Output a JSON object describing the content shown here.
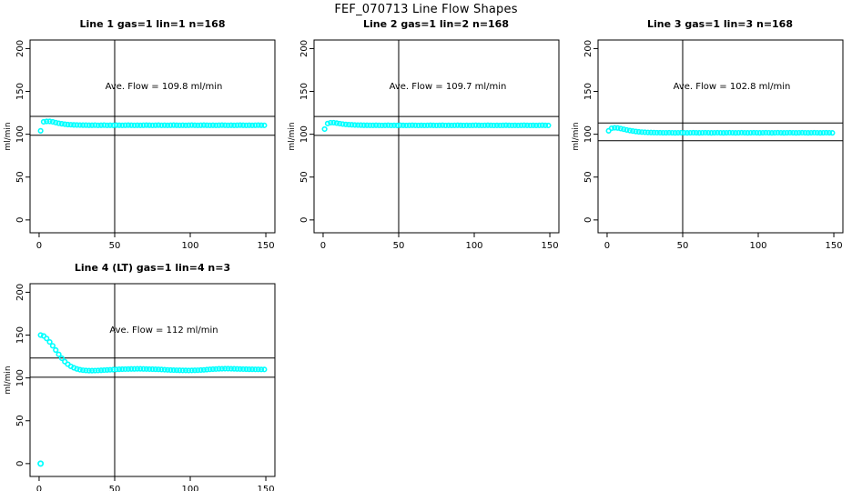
{
  "page_title": "FEF_070713  Line Flow Shapes",
  "colors": {
    "data_marker": "#00ffff",
    "axis": "#000000",
    "background": "#ffffff"
  },
  "chart_data": [
    {
      "type": "scatter",
      "title": "Line 1 gas=1 lin=1 n=168",
      "annotation": "Ave. Flow =  109.8  ml/min",
      "ave_flow": 109.8,
      "n": 168,
      "ylabel": "ml/min",
      "x_ticks": [
        0,
        50,
        100,
        150
      ],
      "y_ticks": [
        0,
        50,
        100,
        150,
        200
      ],
      "xlim": [
        -6,
        156
      ],
      "ylim": [
        -15,
        210
      ],
      "vline_x": 50,
      "hlines": [
        98.8,
        120.8
      ],
      "marker": "open-circle",
      "x_start": 1,
      "x_step": 2,
      "y": [
        104,
        114.5,
        115,
        115,
        114.5,
        113.6,
        112.8,
        112.2,
        111.7,
        111.3,
        111.1,
        110.9,
        110.8,
        110.7,
        110.6,
        110.6,
        110.5,
        110.5,
        110.6,
        110.4,
        110.5,
        110.6,
        110.4,
        110.5,
        110.4,
        110.6,
        110.5,
        110.4,
        110.5,
        110.6,
        110.5,
        110.4,
        110.5,
        110.4,
        110.5,
        110.6,
        110.5,
        110.4,
        110.5,
        110.6,
        110.4,
        110.5,
        110.4,
        110.5,
        110.6,
        110.5,
        110.4,
        110.5,
        110.4,
        110.5,
        110.6,
        110.5,
        110.4,
        110.5,
        110.6,
        110.5,
        110.4,
        110.5,
        110.4,
        110.5,
        110.6,
        110.5,
        110.4,
        110.5,
        110.4,
        110.5,
        110.6,
        110.5,
        110.4,
        110.5,
        110.4,
        110.5,
        110.6,
        110.5,
        110.4
      ],
      "extra_points": []
    },
    {
      "type": "scatter",
      "title": "Line 2 gas=1 lin=2 n=168",
      "annotation": "Ave. Flow =  109.7  ml/min",
      "ave_flow": 109.7,
      "n": 168,
      "ylabel": "ml/min",
      "x_ticks": [
        0,
        50,
        100,
        150
      ],
      "y_ticks": [
        0,
        50,
        100,
        150,
        200
      ],
      "xlim": [
        -6,
        156
      ],
      "ylim": [
        -15,
        210
      ],
      "vline_x": 50,
      "hlines": [
        98.7,
        120.7
      ],
      "marker": "open-circle",
      "x_start": 1,
      "x_step": 2,
      "y": [
        106,
        112.5,
        113.5,
        113.5,
        113,
        112.4,
        111.9,
        111.5,
        111.2,
        111,
        110.8,
        110.7,
        110.6,
        110.5,
        110.5,
        110.4,
        110.4,
        110.5,
        110.4,
        110.3,
        110.4,
        110.5,
        110.3,
        110.4,
        110.3,
        110.5,
        110.4,
        110.3,
        110.4,
        110.5,
        110.4,
        110.3,
        110.4,
        110.3,
        110.4,
        110.5,
        110.4,
        110.3,
        110.4,
        110.5,
        110.3,
        110.4,
        110.3,
        110.4,
        110.5,
        110.4,
        110.3,
        110.4,
        110.3,
        110.4,
        110.5,
        110.4,
        110.3,
        110.4,
        110.5,
        110.4,
        110.3,
        110.4,
        110.3,
        110.4,
        110.5,
        110.4,
        110.3,
        110.4,
        110.3,
        110.4,
        110.5,
        110.4,
        110.3,
        110.4,
        110.3,
        110.4,
        110.5,
        110.4,
        110.3
      ],
      "extra_points": []
    },
    {
      "type": "scatter",
      "title": "Line 3 gas=1 lin=3 n=168",
      "annotation": "Ave. Flow =  102.8  ml/min",
      "ave_flow": 102.8,
      "n": 168,
      "ylabel": "ml/min",
      "x_ticks": [
        0,
        50,
        100,
        150
      ],
      "y_ticks": [
        0,
        50,
        100,
        150,
        200
      ],
      "xlim": [
        -6,
        156
      ],
      "ylim": [
        -15,
        210
      ],
      "vline_x": 50,
      "hlines": [
        92.5,
        113.1
      ],
      "marker": "open-circle",
      "x_start": 1,
      "x_step": 2,
      "y": [
        104,
        107,
        107.5,
        107.3,
        106.6,
        105.8,
        105,
        104.3,
        103.7,
        103.2,
        102.8,
        102.5,
        102.3,
        102.1,
        102,
        101.9,
        101.8,
        101.8,
        101.7,
        101.7,
        101.8,
        101.7,
        101.6,
        101.7,
        101.8,
        101.7,
        101.6,
        101.7,
        101.8,
        101.7,
        101.6,
        101.7,
        101.8,
        101.7,
        101.6,
        101.7,
        101.8,
        101.7,
        101.6,
        101.7,
        101.8,
        101.7,
        101.6,
        101.7,
        101.8,
        101.7,
        101.6,
        101.7,
        101.8,
        101.7,
        101.6,
        101.7,
        101.8,
        101.7,
        101.6,
        101.7,
        101.8,
        101.7,
        101.6,
        101.7,
        101.8,
        101.7,
        101.6,
        101.7,
        101.8,
        101.7,
        101.6,
        101.7,
        101.8,
        101.7,
        101.6,
        101.7,
        101.8,
        101.7,
        101.6
      ],
      "extra_points": []
    },
    {
      "type": "scatter",
      "title": "Line 4 (LT) gas=1 lin=4 n=3",
      "annotation": "Ave. Flow =  112  ml/min",
      "ave_flow": 112,
      "n": 3,
      "ylabel": "ml/min",
      "x_ticks": [
        0,
        50,
        100,
        150
      ],
      "y_ticks": [
        0,
        50,
        100,
        150,
        200
      ],
      "xlim": [
        -6,
        156
      ],
      "ylim": [
        -15,
        210
      ],
      "vline_x": 50,
      "hlines": [
        100.8,
        123.2
      ],
      "marker": "open-circle",
      "x_start": 1,
      "x_step": 2,
      "y": [
        150,
        149,
        146,
        142,
        137.5,
        132.5,
        127.5,
        123,
        119,
        116,
        113.5,
        111.8,
        110.5,
        109.6,
        109,
        108.7,
        108.5,
        108.5,
        108.6,
        108.7,
        108.9,
        109.1,
        109.3,
        109.5,
        109.7,
        109.9,
        110.1,
        110.2,
        110.3,
        110.4,
        110.5,
        110.5,
        110.6,
        110.6,
        110.5,
        110.4,
        110.3,
        110.2,
        110.1,
        110,
        109.8,
        109.6,
        109.4,
        109.2,
        109.1,
        109,
        108.9,
        108.8,
        108.8,
        108.7,
        108.8,
        108.9,
        109,
        109.2,
        109.4,
        109.7,
        110,
        110.2,
        110.4,
        110.6,
        110.7,
        110.8,
        110.8,
        110.7,
        110.6,
        110.5,
        110.4,
        110.3,
        110.2,
        110.1,
        110.1,
        110,
        110,
        109.9,
        109.9
      ],
      "extra_points": [
        [
          1,
          0
        ]
      ]
    }
  ]
}
